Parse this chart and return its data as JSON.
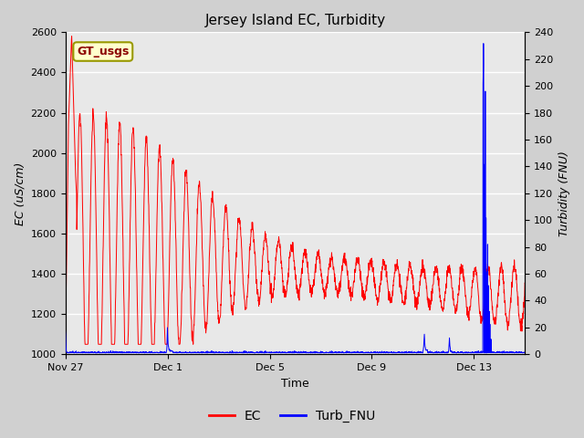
{
  "title": "Jersey Island EC, Turbidity",
  "xlabel": "Time",
  "ylabel_left": "EC (uS/cm)",
  "ylabel_right": "Turbidity (FNU)",
  "x_tick_labels": [
    "Nov 27",
    "Dec 1",
    "Dec 5",
    "Dec 9",
    "Dec 13"
  ],
  "ylim_left": [
    1000,
    2600
  ],
  "ylim_right": [
    0,
    240
  ],
  "yticks_left": [
    1000,
    1200,
    1400,
    1600,
    1800,
    2000,
    2200,
    2400,
    2600
  ],
  "yticks_right": [
    0,
    20,
    40,
    60,
    80,
    100,
    120,
    140,
    160,
    180,
    200,
    220,
    240
  ],
  "ec_color": "red",
  "turb_color": "blue",
  "fig_bg_color": "#d0d0d0",
  "plot_bg_color": "#e8e8e8",
  "legend_label_ec": "EC",
  "legend_label_turb": "Turb_FNU",
  "annotation_text": "GT_usgs",
  "annotation_bg": "#ffffcc",
  "annotation_border": "#999900",
  "seed": 42
}
